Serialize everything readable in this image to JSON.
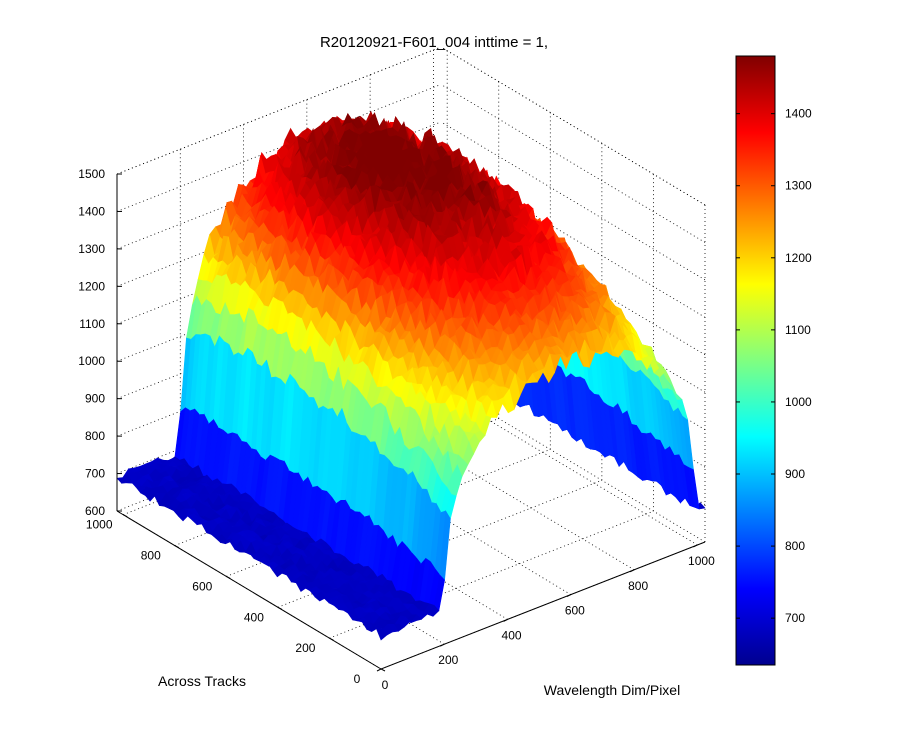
{
  "chart_data": {
    "type": "surface",
    "title": "R20120921-F601_004 inttime = 1,",
    "xlabel": "Wavelength Dim/Pixel",
    "ylabel": "Across Tracks",
    "zlabel": "",
    "xlim": [
      0,
      1024
    ],
    "ylim": [
      0,
      1024
    ],
    "zlim": [
      600,
      1500
    ],
    "x_ticks": [
      "0",
      "200",
      "400",
      "600",
      "800",
      "1000"
    ],
    "y_ticks": [
      "0",
      "200",
      "400",
      "600",
      "800",
      "1000"
    ],
    "z_ticks": [
      "600",
      "700",
      "800",
      "900",
      "1000",
      "1100",
      "1200",
      "1300",
      "1400",
      "1500"
    ],
    "grid": true,
    "colormap": "jet",
    "colorbar": {
      "range": [
        635,
        1480
      ],
      "ticks": [
        "700",
        "800",
        "900",
        "1000",
        "1100",
        "1200",
        "1300",
        "1400"
      ]
    },
    "surface_description": {
      "background_level": 690,
      "peak_level": 1450,
      "illuminated_x_range": [
        200,
        990
      ],
      "illuminated_y_range": [
        0,
        1024
      ],
      "peak_x": 600,
      "peak_y": 700
    }
  }
}
